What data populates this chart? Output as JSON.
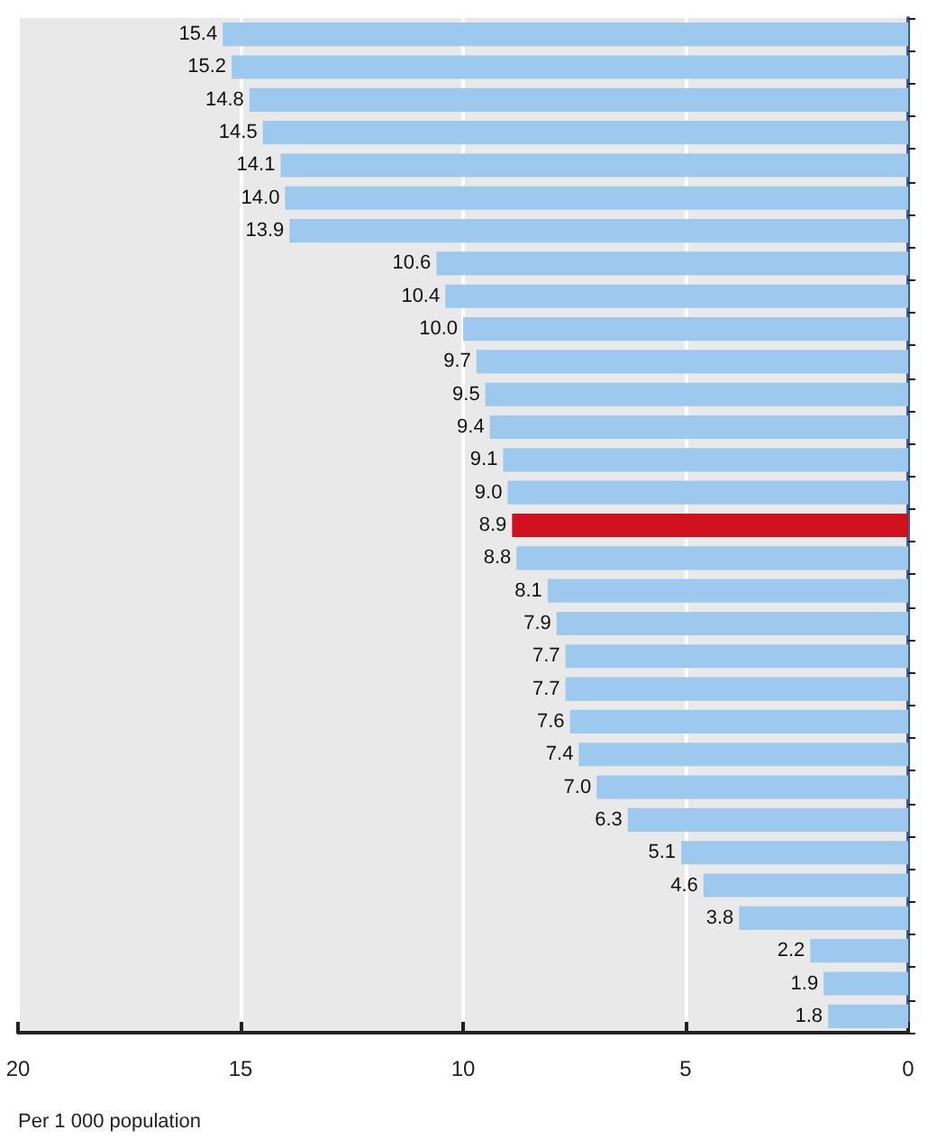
{
  "chart_data": {
    "type": "bar",
    "orientation": "horizontal",
    "xlabel": "Per 1 000 population",
    "categories": [
      null,
      null,
      null,
      null,
      null,
      null,
      null,
      null,
      null,
      null,
      null,
      null,
      null,
      null,
      null,
      null,
      null,
      null,
      null,
      null,
      null,
      null,
      null,
      null,
      null,
      null,
      null,
      null,
      null,
      null,
      null
    ],
    "values": [
      15.4,
      15.2,
      14.8,
      14.5,
      14.1,
      14.0,
      13.9,
      10.6,
      10.4,
      10.0,
      9.7,
      9.5,
      9.4,
      9.1,
      9.0,
      8.9,
      8.8,
      8.1,
      7.9,
      7.7,
      7.7,
      7.6,
      7.4,
      7.0,
      6.3,
      5.1,
      4.6,
      3.8,
      2.2,
      1.9,
      1.8
    ],
    "value_labels": [
      "15.4",
      "15.2",
      "14.8",
      "14.5",
      "14.1",
      "14.0",
      "13.9",
      "10.6",
      "10.4",
      "10.0",
      "9.7",
      "9.5",
      "9.4",
      "9.1",
      "9.0",
      "8.9",
      "8.8",
      "8.1",
      "7.9",
      "7.7",
      "7.7",
      "7.6",
      "7.4",
      "7.0",
      "6.3",
      "5.1",
      "4.6",
      "3.8",
      "2.2",
      "1.9",
      "1.8"
    ],
    "colors": [
      "#9ec9ee",
      "#9ec9ee",
      "#9ec9ee",
      "#9ec9ee",
      "#9ec9ee",
      "#9ec9ee",
      "#9ec9ee",
      "#9ec9ee",
      "#9ec9ee",
      "#9ec9ee",
      "#9ec9ee",
      "#9ec9ee",
      "#9ec9ee",
      "#9ec9ee",
      "#9ec9ee",
      "#d0101c",
      "#9ec9ee",
      "#9ec9ee",
      "#9ec9ee",
      "#9ec9ee",
      "#9ec9ee",
      "#9ec9ee",
      "#9ec9ee",
      "#9ec9ee",
      "#9ec9ee",
      "#9ec9ee",
      "#9ec9ee",
      "#9ec9ee",
      "#9ec9ee",
      "#9ec9ee",
      "#9ec9ee"
    ],
    "xlim": [
      20,
      0
    ],
    "xticks": [
      20,
      15,
      10,
      5,
      0
    ],
    "grid": "x"
  }
}
